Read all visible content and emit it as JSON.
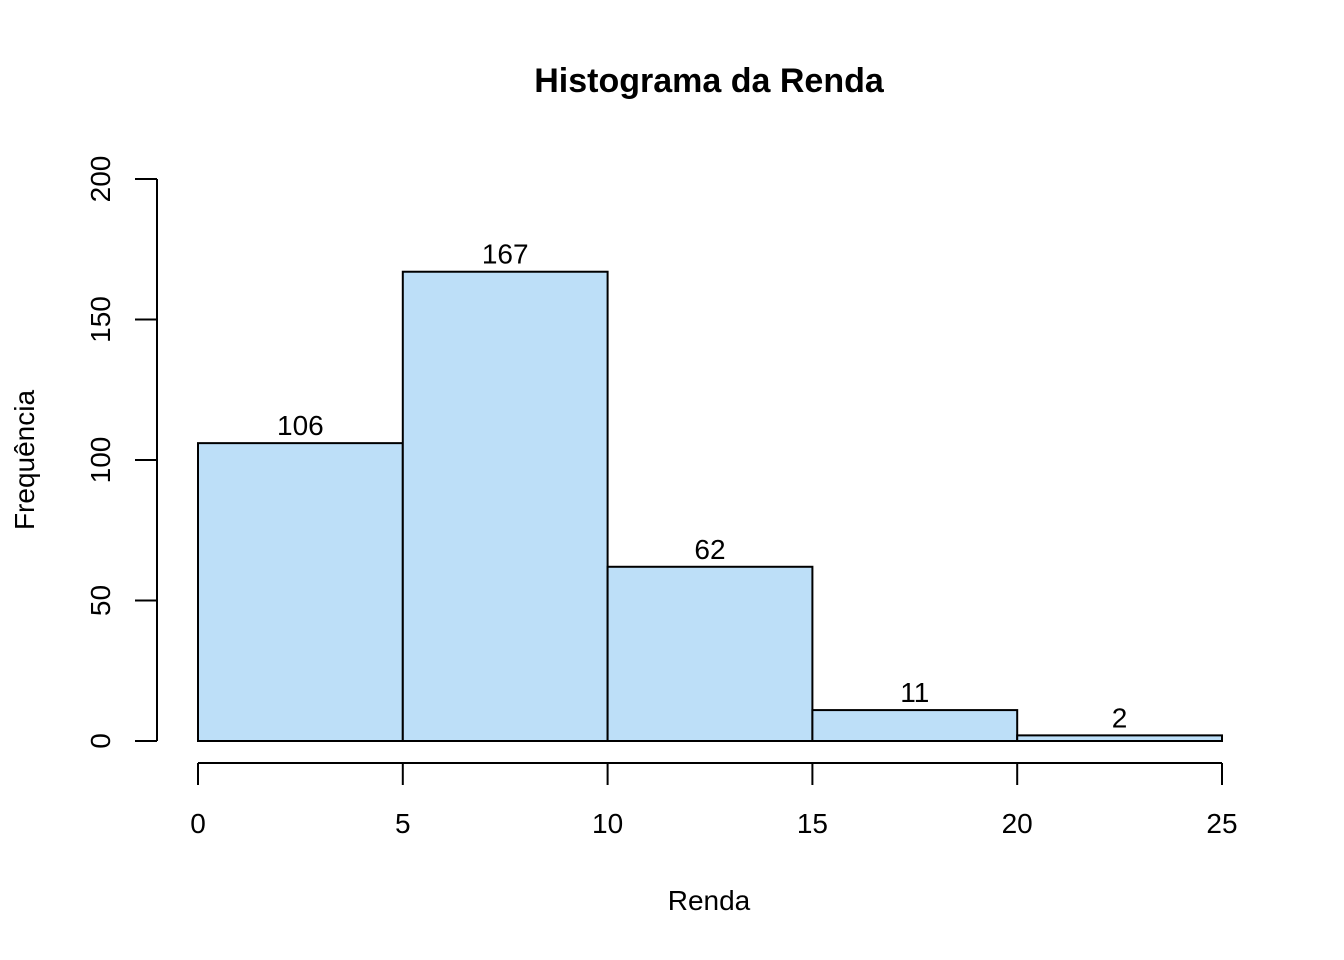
{
  "chart_data": {
    "type": "bar",
    "title": "Histograma da Renda",
    "xlabel": "Renda",
    "ylabel": "Frequência",
    "bins": [
      {
        "start": 0,
        "end": 5,
        "count": 106,
        "label": "106"
      },
      {
        "start": 5,
        "end": 10,
        "count": 167,
        "label": "167"
      },
      {
        "start": 10,
        "end": 15,
        "count": 62,
        "label": "62"
      },
      {
        "start": 15,
        "end": 20,
        "count": 11,
        "label": "11"
      },
      {
        "start": 20,
        "end": 25,
        "count": 2,
        "label": "2"
      }
    ],
    "xlim": [
      0,
      25
    ],
    "ylim": [
      0,
      200
    ],
    "x_ticks": [
      0,
      5,
      10,
      15,
      20,
      25
    ],
    "x_tick_labels": [
      "0",
      "5",
      "10",
      "15",
      "20",
      "25"
    ],
    "y_ticks": [
      0,
      50,
      100,
      150,
      200
    ],
    "y_tick_labels": [
      "0",
      "50",
      "100",
      "150",
      "200"
    ],
    "grid": false,
    "bar_color": "#bddff8",
    "edge_color": "#000000"
  }
}
